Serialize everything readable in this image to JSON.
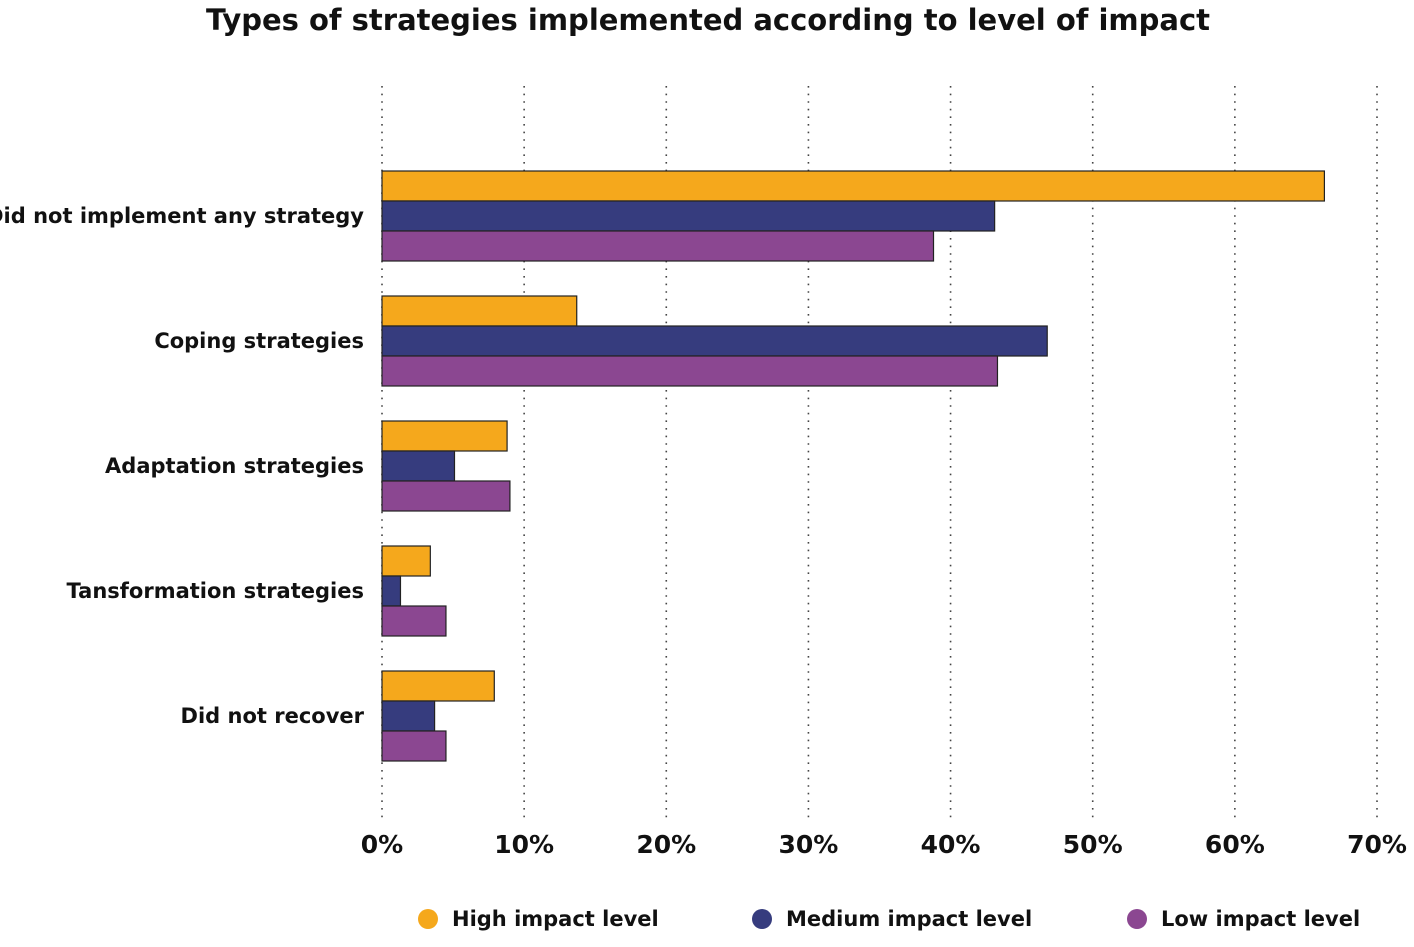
{
  "chart_data": {
    "type": "bar",
    "orientation": "horizontal",
    "title": "Types of strategies implemented according to level of impact",
    "xlabel": "",
    "ylabel": "",
    "xlim": [
      0,
      70
    ],
    "grid": true,
    "legend_position": "bottom",
    "categories": [
      "Did not implement any strategy",
      "Coping strategies",
      "Adaptation strategies",
      "Tansformation strategies",
      "Did not recover"
    ],
    "x_ticks": [
      "0%",
      "10%",
      "20%",
      "30%",
      "40%",
      "50%",
      "60%",
      "70%"
    ],
    "series": [
      {
        "name": "High impact level",
        "color": "#F5A81C",
        "values": [
          66.3,
          13.7,
          8.8,
          3.4,
          7.9
        ]
      },
      {
        "name": "Medium impact level",
        "color": "#363C7E",
        "values": [
          43.1,
          46.8,
          5.1,
          1.3,
          3.7
        ]
      },
      {
        "name": "Low impact level",
        "color": "#8B4791",
        "values": [
          38.8,
          43.3,
          9.0,
          4.5,
          4.5
        ]
      }
    ]
  }
}
